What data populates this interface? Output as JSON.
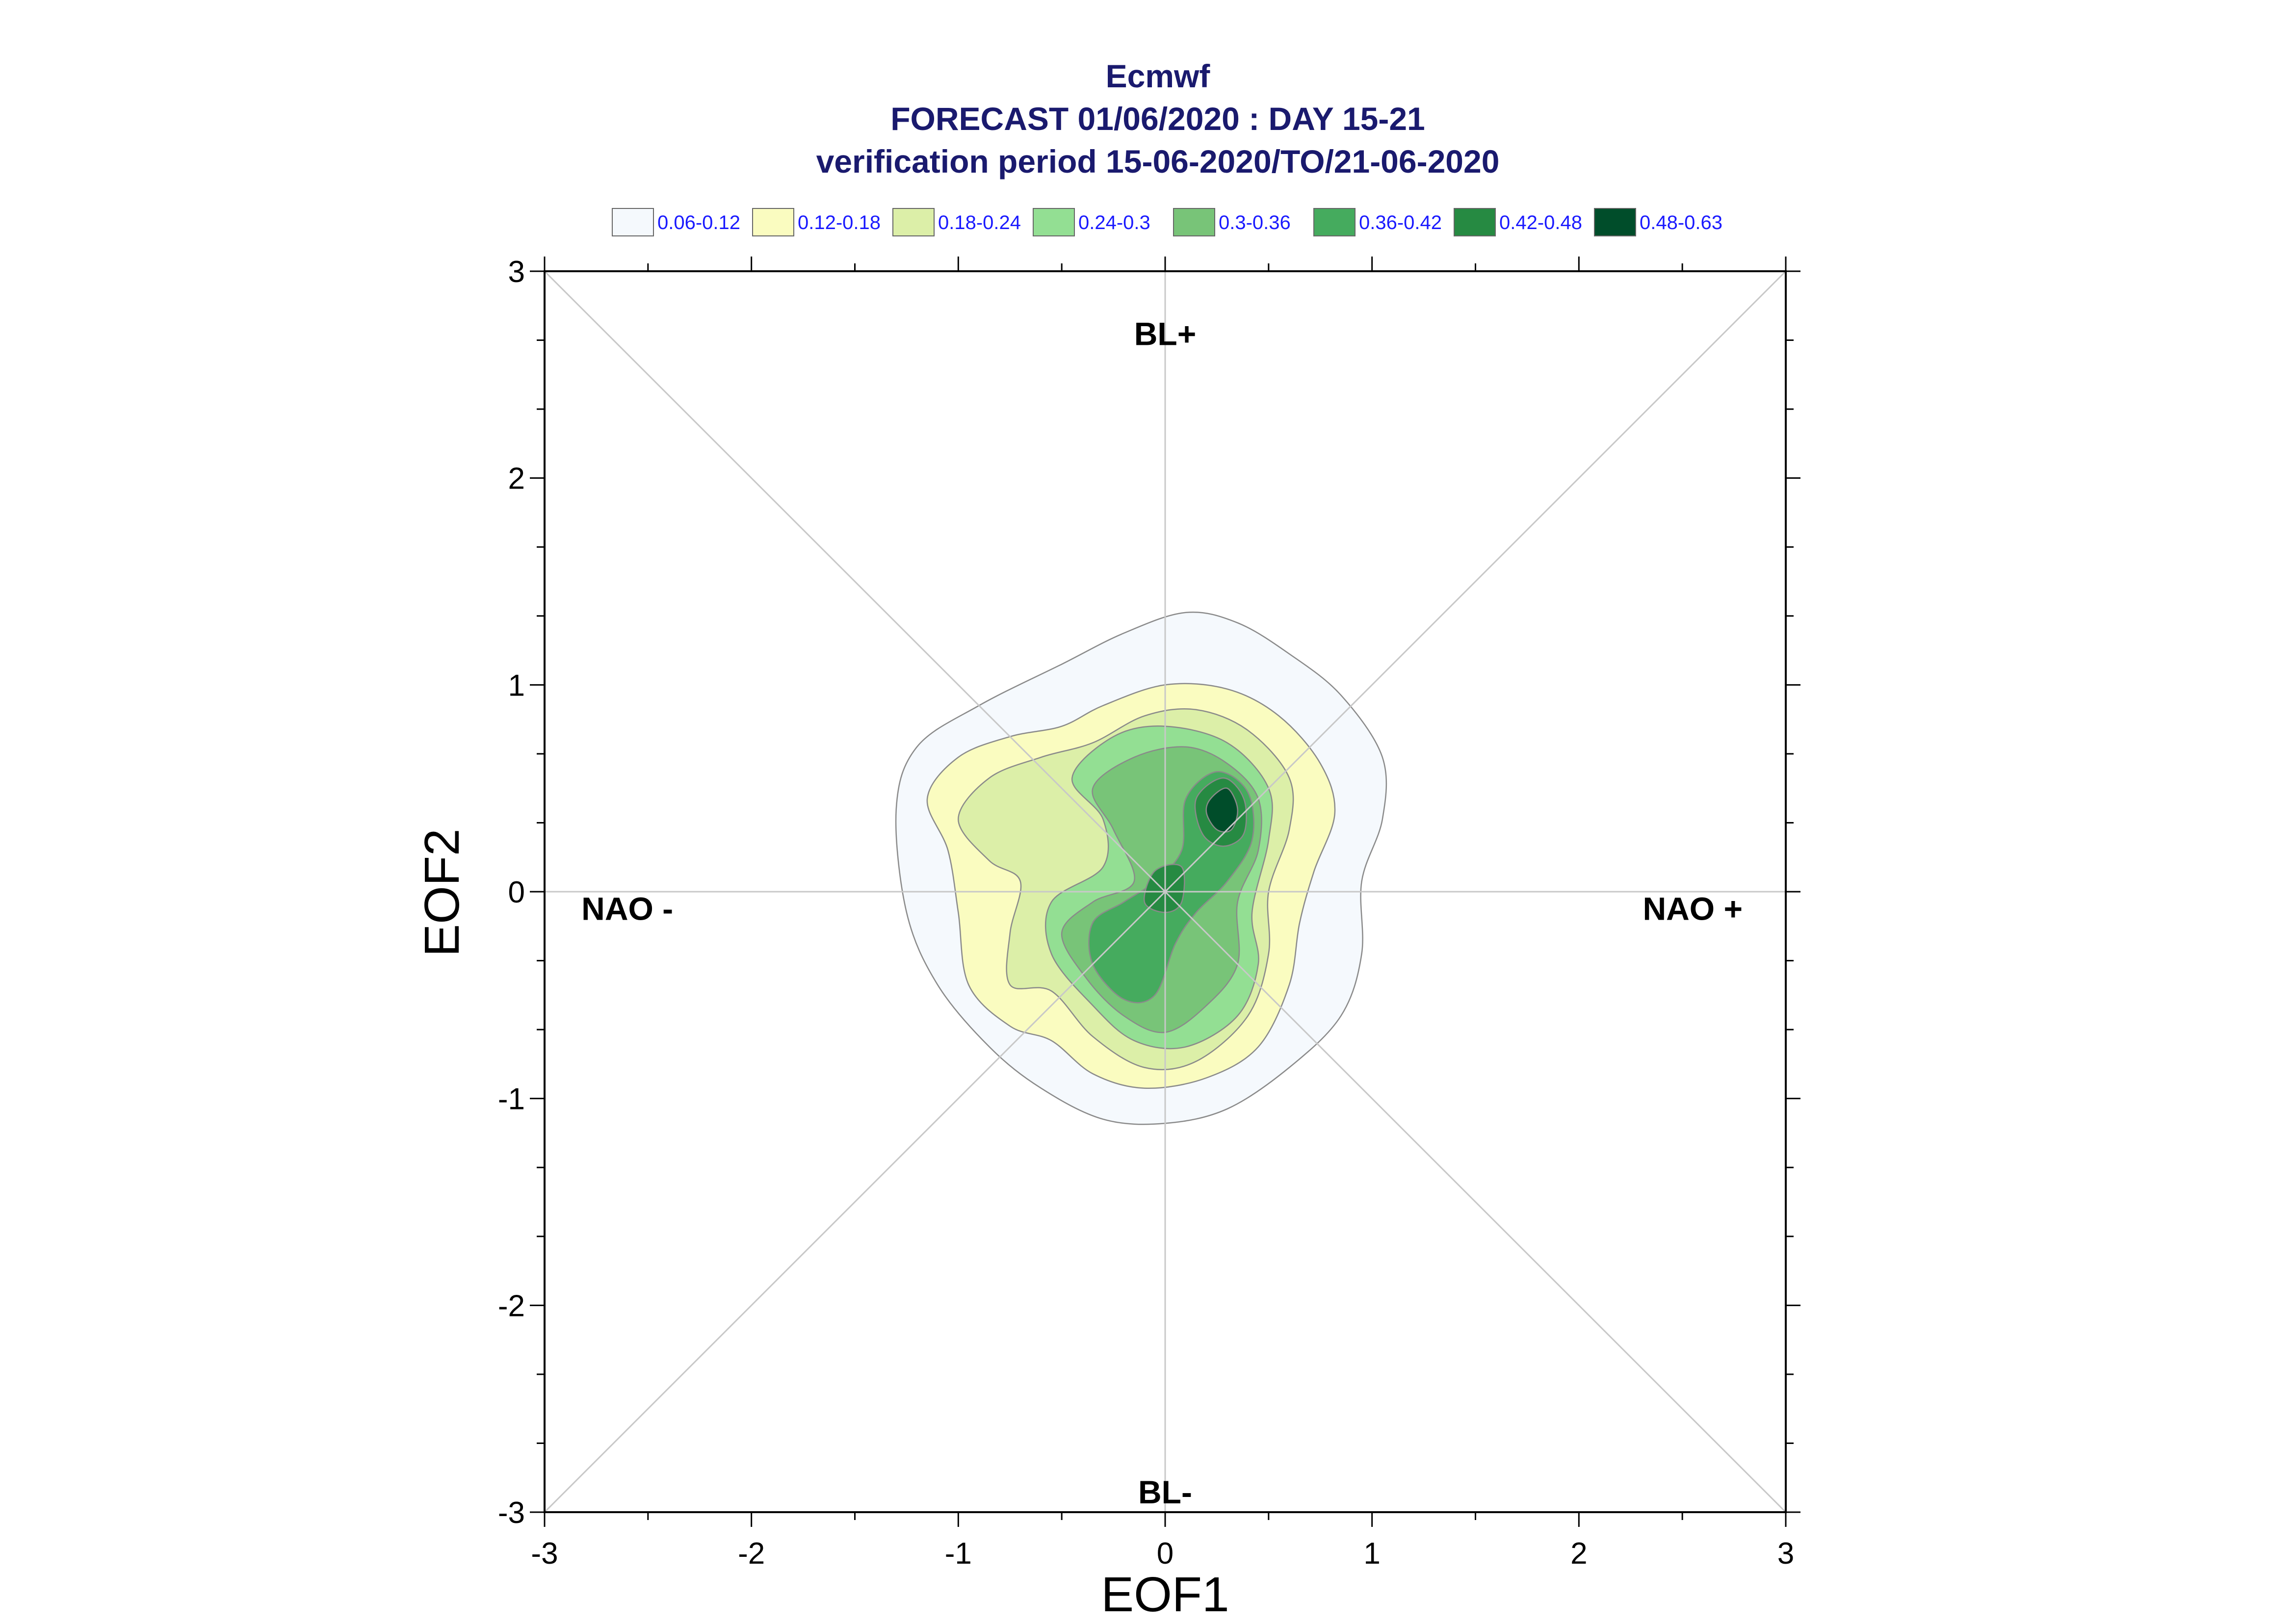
{
  "chart_data": {
    "type": "contour",
    "title": [
      "Ecmwf",
      "FORECAST 01/06/2020 : DAY 15-21",
      "verification period 15-06-2020/TO/21-06-2020"
    ],
    "xlabel": "EOF1",
    "ylabel": "EOF2",
    "xlim": [
      -3,
      3
    ],
    "ylim": [
      -3,
      3
    ],
    "xticks": [
      -3,
      -2,
      -1,
      0,
      1,
      2,
      3
    ],
    "yticks": [
      -3,
      -2,
      -1,
      0,
      1,
      2,
      3
    ],
    "grid": false,
    "legend_placement": "top",
    "legend": [
      {
        "label": "0.06-0.12",
        "color": "#f5f9fd"
      },
      {
        "label": "0.12-0.18",
        "color": "#fafcc0"
      },
      {
        "label": "0.18-0.24",
        "color": "#dcefa8"
      },
      {
        "label": "0.24-0.3",
        "color": "#93df93"
      },
      {
        "label": "0.3-0.36",
        "color": "#78c478"
      },
      {
        "label": "0.36-0.42",
        "color": "#45ab5e"
      },
      {
        "label": "0.42-0.48",
        "color": "#268a42"
      },
      {
        "label": "0.48-0.63",
        "color": "#004d2a"
      }
    ],
    "regime_labels": [
      {
        "text": "BL+",
        "x": 0,
        "y": 2.7
      },
      {
        "text": "BL-",
        "x": 0,
        "y": -2.9
      },
      {
        "text": "NAO -",
        "x": -2.6,
        "y": -0.08
      },
      {
        "text": "NAO +",
        "x": 2.55,
        "y": -0.08
      }
    ],
    "contours": [
      {
        "level": "0.06-0.12",
        "points": [
          [
            -1.3,
            0.4
          ],
          [
            -1.2,
            0.7
          ],
          [
            -0.9,
            0.9
          ],
          [
            -0.5,
            1.1
          ],
          [
            -0.2,
            1.25
          ],
          [
            0.1,
            1.35
          ],
          [
            0.35,
            1.3
          ],
          [
            0.6,
            1.15
          ],
          [
            0.85,
            0.95
          ],
          [
            1.05,
            0.65
          ],
          [
            1.05,
            0.35
          ],
          [
            0.95,
            0.05
          ],
          [
            0.95,
            -0.3
          ],
          [
            0.85,
            -0.6
          ],
          [
            0.6,
            -0.85
          ],
          [
            0.3,
            -1.05
          ],
          [
            0.0,
            -1.12
          ],
          [
            -0.3,
            -1.1
          ],
          [
            -0.6,
            -0.95
          ],
          [
            -0.85,
            -0.75
          ],
          [
            -1.1,
            -0.45
          ],
          [
            -1.25,
            -0.1
          ]
        ]
      },
      {
        "level": "0.12-0.18",
        "points": [
          [
            -1.15,
            0.45
          ],
          [
            -1.0,
            0.65
          ],
          [
            -0.75,
            0.75
          ],
          [
            -0.5,
            0.8
          ],
          [
            -0.3,
            0.9
          ],
          [
            0.0,
            1.0
          ],
          [
            0.3,
            0.98
          ],
          [
            0.55,
            0.85
          ],
          [
            0.75,
            0.62
          ],
          [
            0.82,
            0.38
          ],
          [
            0.72,
            0.1
          ],
          [
            0.65,
            -0.15
          ],
          [
            0.6,
            -0.45
          ],
          [
            0.45,
            -0.75
          ],
          [
            0.2,
            -0.9
          ],
          [
            -0.1,
            -0.95
          ],
          [
            -0.35,
            -0.88
          ],
          [
            -0.55,
            -0.72
          ],
          [
            -0.75,
            -0.65
          ],
          [
            -0.95,
            -0.45
          ],
          [
            -1.0,
            -0.1
          ],
          [
            -1.05,
            0.2
          ]
        ]
      },
      {
        "level": "0.18-0.24",
        "points": [
          [
            -1.0,
            0.35
          ],
          [
            -0.85,
            0.55
          ],
          [
            -0.6,
            0.65
          ],
          [
            -0.35,
            0.72
          ],
          [
            -0.1,
            0.85
          ],
          [
            0.15,
            0.88
          ],
          [
            0.4,
            0.78
          ],
          [
            0.6,
            0.55
          ],
          [
            0.6,
            0.3
          ],
          [
            0.5,
            0.0
          ],
          [
            0.5,
            -0.3
          ],
          [
            0.4,
            -0.6
          ],
          [
            0.15,
            -0.82
          ],
          [
            -0.1,
            -0.85
          ],
          [
            -0.35,
            -0.7
          ],
          [
            -0.55,
            -0.48
          ],
          [
            -0.75,
            -0.45
          ],
          [
            -0.75,
            -0.2
          ],
          [
            -0.7,
            0.05
          ],
          [
            -0.85,
            0.15
          ]
        ]
      },
      {
        "level": "0.24-0.3",
        "points": [
          [
            -0.45,
            0.55
          ],
          [
            -0.25,
            0.75
          ],
          [
            0.0,
            0.8
          ],
          [
            0.3,
            0.72
          ],
          [
            0.5,
            0.5
          ],
          [
            0.5,
            0.25
          ],
          [
            0.42,
            -0.1
          ],
          [
            0.45,
            -0.35
          ],
          [
            0.35,
            -0.6
          ],
          [
            0.1,
            -0.75
          ],
          [
            -0.15,
            -0.72
          ],
          [
            -0.35,
            -0.55
          ],
          [
            -0.55,
            -0.3
          ],
          [
            -0.55,
            -0.05
          ],
          [
            -0.3,
            0.12
          ],
          [
            -0.3,
            0.35
          ]
        ]
      },
      {
        "level": "0.3-0.36",
        "points": [
          [
            -0.35,
            0.5
          ],
          [
            -0.15,
            0.65
          ],
          [
            0.1,
            0.7
          ],
          [
            0.3,
            0.62
          ],
          [
            0.45,
            0.45
          ],
          [
            0.45,
            0.2
          ],
          [
            0.35,
            -0.05
          ],
          [
            0.35,
            -0.35
          ],
          [
            0.2,
            -0.55
          ],
          [
            0.0,
            -0.68
          ],
          [
            -0.2,
            -0.6
          ],
          [
            -0.38,
            -0.42
          ],
          [
            -0.5,
            -0.2
          ],
          [
            -0.35,
            -0.05
          ],
          [
            -0.15,
            0.05
          ],
          [
            -0.25,
            0.3
          ]
        ]
      },
      {
        "level": "0.36-0.42",
        "points": [
          [
            0.1,
            0.45
          ],
          [
            0.25,
            0.58
          ],
          [
            0.4,
            0.48
          ],
          [
            0.42,
            0.25
          ],
          [
            0.3,
            0.05
          ],
          [
            0.15,
            -0.1
          ],
          [
            0.05,
            -0.25
          ],
          [
            -0.05,
            -0.5
          ],
          [
            -0.2,
            -0.52
          ],
          [
            -0.35,
            -0.35
          ],
          [
            -0.35,
            -0.15
          ],
          [
            -0.2,
            -0.05
          ],
          [
            -0.05,
            0.05
          ],
          [
            0.08,
            0.2
          ]
        ]
      },
      {
        "level": "0.42-0.48",
        "points": [
          [
            0.15,
            0.45
          ],
          [
            0.28,
            0.55
          ],
          [
            0.38,
            0.45
          ],
          [
            0.38,
            0.28
          ],
          [
            0.28,
            0.22
          ],
          [
            0.18,
            0.28
          ]
        ]
      },
      {
        "level": "0.42-0.48",
        "points": [
          [
            -0.05,
            0.1
          ],
          [
            0.08,
            0.12
          ],
          [
            0.08,
            -0.05
          ],
          [
            0.0,
            -0.1
          ],
          [
            -0.1,
            -0.05
          ]
        ]
      },
      {
        "level": "0.48-0.63",
        "points": [
          [
            0.22,
            0.45
          ],
          [
            0.3,
            0.5
          ],
          [
            0.35,
            0.4
          ],
          [
            0.32,
            0.3
          ],
          [
            0.25,
            0.3
          ],
          [
            0.2,
            0.38
          ]
        ]
      }
    ]
  }
}
